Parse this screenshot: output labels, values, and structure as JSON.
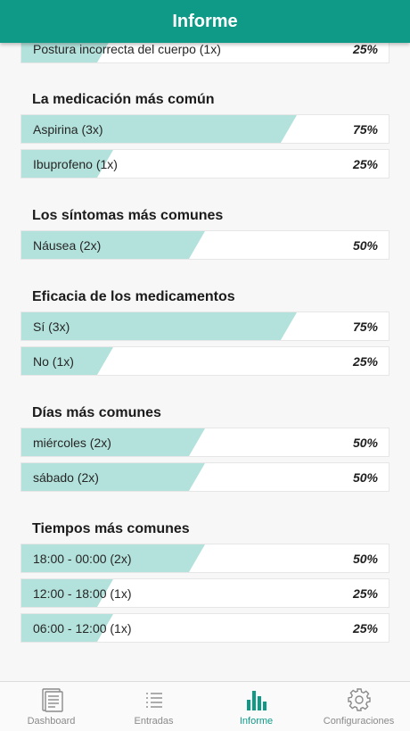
{
  "header": {
    "title": "Informe"
  },
  "colors": {
    "accent": "#0f9a88",
    "bar_fill": "#b3e2dc"
  },
  "partial_row": {
    "label": "Postura incorrecta del cuerpo (1x)",
    "percent": "25%",
    "value": 25
  },
  "sections": [
    {
      "title": "La medicación más común",
      "rows": [
        {
          "label": "Aspirina (3x)",
          "percent": "75%",
          "value": 75
        },
        {
          "label": "Ibuprofeno (1x)",
          "percent": "25%",
          "value": 25
        }
      ]
    },
    {
      "title": "Los síntomas más comunes",
      "rows": [
        {
          "label": "Náusea (2x)",
          "percent": "50%",
          "value": 50
        }
      ]
    },
    {
      "title": "Eficacia de los medicamentos",
      "rows": [
        {
          "label": "Sí (3x)",
          "percent": "75%",
          "value": 75
        },
        {
          "label": "No (1x)",
          "percent": "25%",
          "value": 25
        }
      ]
    },
    {
      "title": "Días más comunes",
      "rows": [
        {
          "label": "miércoles (2x)",
          "percent": "50%",
          "value": 50
        },
        {
          "label": "sábado (2x)",
          "percent": "50%",
          "value": 50
        }
      ]
    },
    {
      "title": "Tiempos más comunes",
      "rows": [
        {
          "label": "18:00 - 00:00 (2x)",
          "percent": "50%",
          "value": 50
        },
        {
          "label": "12:00 - 18:00 (1x)",
          "percent": "25%",
          "value": 25
        },
        {
          "label": "06:00 - 12:00 (1x)",
          "percent": "25%",
          "value": 25
        }
      ]
    }
  ],
  "tabs": [
    {
      "label": "Dashboard",
      "icon": "dashboard-icon",
      "active": false
    },
    {
      "label": "Entradas",
      "icon": "list-icon",
      "active": false
    },
    {
      "label": "Informe",
      "icon": "bar-chart-icon",
      "active": true
    },
    {
      "label": "Configuraciones",
      "icon": "gear-icon",
      "active": false
    }
  ]
}
